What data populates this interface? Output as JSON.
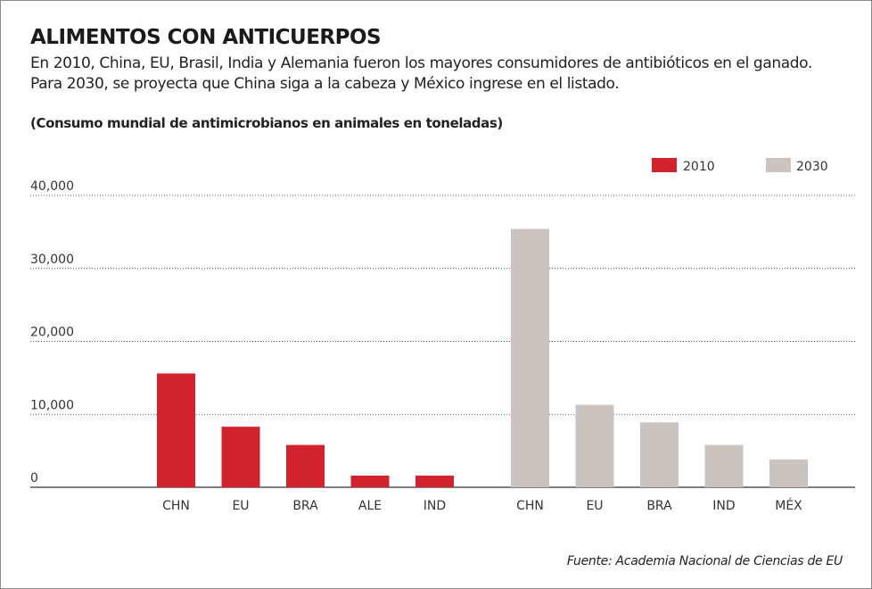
{
  "header": {
    "title": "ALIMENTOS CON ANTICUERPOS",
    "subtitle_line1": "En 2010, China, EU, Brasil, India y Alemania fueron los mayores consumidores de antibióticos en el ganado.",
    "subtitle_line2": "Para 2030, se proyecta que China siga a la cabeza y México ingrese en el listado.",
    "chart_label": "(Consumo mundial de antimicrobianos en animales en toneladas)"
  },
  "footer": {
    "source": "Fuente: Academia Nacional de Ciencias de EU"
  },
  "colors": {
    "series_2010": "#d2222d",
    "series_2030": "#cbc3bf",
    "grid": "#555555"
  },
  "chart_data": {
    "type": "bar",
    "title": "",
    "xlabel": "",
    "ylabel": "",
    "ylim": [
      0,
      40000
    ],
    "yticks": [
      {
        "value": 0,
        "label": "0"
      },
      {
        "value": 10000,
        "label": "10,000"
      },
      {
        "value": 20000,
        "label": "20,000"
      },
      {
        "value": 30000,
        "label": "30,000"
      },
      {
        "value": 40000,
        "label": "40,000"
      }
    ],
    "grid": true,
    "legend": "top-right",
    "series": [
      {
        "name": "2010",
        "color": "#d2222d",
        "categories": [
          "CHN",
          "EU",
          "BRA",
          "ALE",
          "IND"
        ],
        "values": [
          15600,
          8300,
          5800,
          1600,
          1600
        ]
      },
      {
        "name": "2030",
        "color": "#cbc3bf",
        "categories": [
          "CHN",
          "EU",
          "BRA",
          "IND",
          "MÉX"
        ],
        "values": [
          35400,
          11300,
          8900,
          5800,
          3800
        ]
      }
    ]
  }
}
